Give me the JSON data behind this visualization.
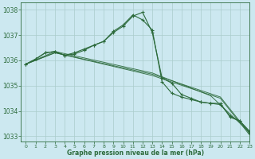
{
  "xlabel": "Graphe pression niveau de la mer (hPa)",
  "bg_color": "#cce8f0",
  "grid_color": "#aacccc",
  "line_color": "#2d6b3c",
  "ylim": [
    1032.8,
    1038.3
  ],
  "xlim": [
    -0.5,
    23
  ],
  "yticks": [
    1033,
    1034,
    1035,
    1036,
    1037,
    1038
  ],
  "xticks": [
    0,
    1,
    2,
    3,
    4,
    5,
    6,
    7,
    8,
    9,
    10,
    11,
    12,
    13,
    14,
    15,
    16,
    17,
    18,
    19,
    20,
    21,
    22,
    23
  ],
  "series_with_markers": [
    {
      "x": [
        0,
        1,
        2,
        3,
        4,
        5,
        6,
        7,
        8,
        9,
        10,
        11,
        12,
        13,
        14,
        15,
        16,
        17,
        18,
        19,
        20,
        21,
        22,
        23
      ],
      "y": [
        1035.85,
        1036.05,
        1036.3,
        1036.35,
        1036.2,
        1036.25,
        1036.4,
        1036.6,
        1036.75,
        1037.1,
        1037.35,
        1037.75,
        1037.9,
        1037.1,
        1035.3,
        1035.1,
        1034.65,
        1034.5,
        1034.35,
        1034.3,
        1034.3,
        1033.75,
        1033.6,
        1033.15
      ]
    },
    {
      "x": [
        0,
        1,
        2,
        3,
        4,
        5,
        6,
        7,
        8,
        9,
        10,
        11,
        12,
        13,
        14,
        15,
        16,
        17,
        18,
        19,
        20,
        21,
        22,
        23
      ],
      "y": [
        1035.85,
        1036.05,
        1036.3,
        1036.35,
        1036.2,
        1036.3,
        1036.45,
        1036.6,
        1036.75,
        1037.15,
        1037.4,
        1037.8,
        1037.6,
        1037.2,
        1035.15,
        1034.7,
        1034.55,
        1034.45,
        1034.35,
        1034.3,
        1034.25,
        1033.8,
        1033.6,
        1033.2
      ]
    }
  ],
  "series_flat": [
    {
      "x": [
        0,
        3,
        13,
        19,
        23
      ],
      "y": [
        1035.85,
        1036.35,
        1035.5,
        1034.6,
        1033.15
      ]
    },
    {
      "x": [
        0,
        3,
        13,
        20,
        23
      ],
      "y": [
        1035.85,
        1036.3,
        1035.45,
        1034.55,
        1033.1
      ]
    },
    {
      "x": [
        0,
        3,
        13,
        20,
        23
      ],
      "y": [
        1035.85,
        1036.3,
        1035.4,
        1034.5,
        1033.05
      ]
    }
  ]
}
